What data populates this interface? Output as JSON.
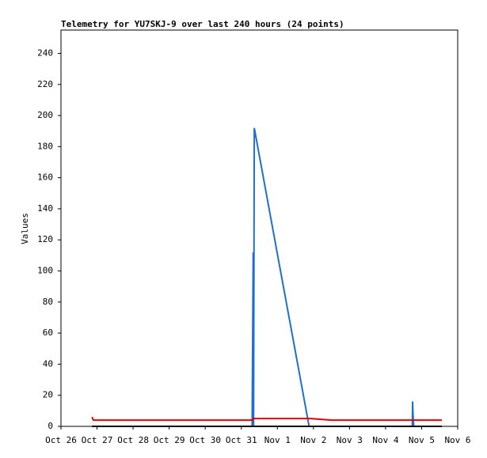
{
  "chart_data": {
    "type": "line",
    "title": "Telemetry for YU7SKJ-9 over last 240 hours (24 points)",
    "y_label": "Values",
    "x": [
      0.86,
      0.9,
      2.5,
      4.0,
      5.3,
      5.33,
      5.34,
      5.36,
      6.0,
      6.5,
      6.88,
      6.92,
      7.5,
      8.5,
      9.7,
      9.74,
      9.75,
      9.76,
      9.78,
      9.8,
      10.0,
      10.2,
      10.4,
      10.56
    ],
    "series": [
      {
        "color": "#1f6fcf",
        "values": [
          0,
          0,
          0,
          0,
          0,
          112,
          0,
          192,
          111,
          48,
          0,
          0,
          0,
          0,
          0,
          0,
          16,
          8,
          0,
          0,
          0,
          0,
          0,
          0
        ]
      },
      {
        "color": "#000000",
        "values": [
          0,
          0,
          0,
          0,
          0,
          0,
          0,
          0,
          0,
          0,
          0,
          0,
          0,
          0,
          0,
          0,
          0,
          0,
          0,
          0,
          0,
          0,
          0,
          0
        ]
      },
      {
        "color": "#e00000",
        "values": [
          6,
          4,
          4,
          4,
          4,
          5,
          5,
          5,
          5,
          5,
          5,
          5,
          4,
          4,
          4,
          4,
          4,
          4,
          4,
          4,
          4,
          4,
          4,
          4
        ]
      }
    ],
    "xlim": [
      0,
      11
    ],
    "xticks": [
      {
        "value": 0,
        "label": "Oct 26"
      },
      {
        "value": 1,
        "label": "Oct 27"
      },
      {
        "value": 2,
        "label": "Oct 28"
      },
      {
        "value": 3,
        "label": "Oct 29"
      },
      {
        "value": 4,
        "label": "Oct 30"
      },
      {
        "value": 5,
        "label": "Oct 31"
      },
      {
        "value": 6,
        "label": "Nov 1"
      },
      {
        "value": 7,
        "label": "Nov 2"
      },
      {
        "value": 8,
        "label": "Nov 3"
      },
      {
        "value": 9,
        "label": "Nov 4"
      },
      {
        "value": 10,
        "label": "Nov 5"
      },
      {
        "value": 11,
        "label": "Nov 6"
      }
    ],
    "ylim": [
      0,
      255
    ],
    "yticks": [
      0,
      20,
      40,
      60,
      80,
      100,
      120,
      140,
      160,
      180,
      200,
      220,
      240
    ]
  }
}
